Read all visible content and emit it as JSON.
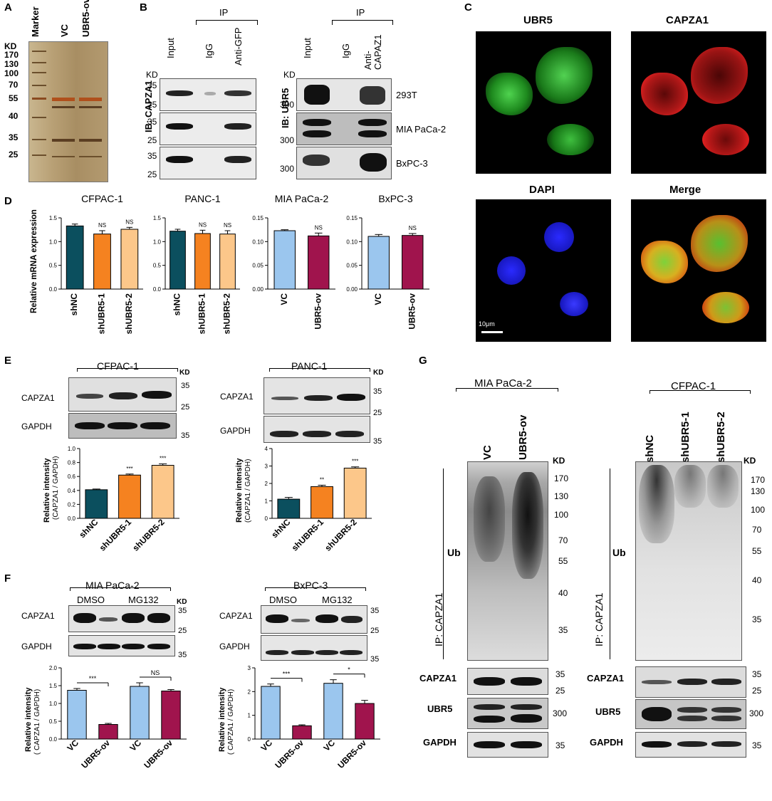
{
  "panels": {
    "A": "A",
    "B": "B",
    "C": "C",
    "D": "D",
    "E": "E",
    "F": "F",
    "G": "G"
  },
  "kd": "KD",
  "A": {
    "lanes": [
      "Marker",
      "VC",
      "UBR5-ov"
    ],
    "markers": [
      "170",
      "130",
      "100",
      "70",
      "55",
      "40",
      "35",
      "25"
    ]
  },
  "B": {
    "ip": "IP",
    "left": {
      "lanes": [
        "Input",
        "IgG",
        "Anti-GFP"
      ],
      "ib": "IB: CAPZA1",
      "markers": [
        "35",
        "25",
        "35",
        "25",
        "35",
        "25"
      ]
    },
    "right": {
      "lanes": [
        "Input",
        "IgG",
        "Anti-\nCAPAZ1"
      ],
      "ib": "IB: UBR5",
      "markers": [
        "300",
        "300",
        "300"
      ],
      "cells": [
        "293T",
        "MIA PaCa-2",
        "BxPC-3"
      ]
    }
  },
  "C": {
    "titles": [
      "UBR5",
      "CAPZA1",
      "DAPI",
      "Merge"
    ],
    "scale": "10μm"
  },
  "D": {
    "ylabel": "Relative mRNA expression",
    "ns": "NS"
  },
  "E": {
    "groups": [
      "CFPAC-1",
      "PANC-1"
    ],
    "rows": [
      "CAPZA1",
      "GAPDH"
    ],
    "markers": [
      "35",
      "25",
      "35"
    ],
    "ylabel1": "Relative intensity",
    "ylabel2": "(CAPZA1 / GAPDH)"
  },
  "F": {
    "groups": [
      "MIA PaCa-2",
      "BxPC-3"
    ],
    "treat": [
      "DMSO",
      "MG132"
    ],
    "rows": [
      "CAPZA1",
      "GAPDH"
    ],
    "markers": [
      "35",
      "25",
      "35"
    ],
    "ylabel1": "Relative intensity",
    "ylabel2": "( CAPZA1 / GAPDH)"
  },
  "G": {
    "left": {
      "group": "MIA PaCa-2",
      "lanes": [
        "VC",
        "UBR5-ov"
      ]
    },
    "right": {
      "group": "CFPAC-1",
      "lanes": [
        "shNC",
        "shUBR5-1",
        "shUBR5-2"
      ]
    },
    "ip": "IP: CAPZA1",
    "ub": "Ub",
    "markers": [
      "170",
      "130",
      "100",
      "70",
      "55",
      "40",
      "35"
    ],
    "rows": [
      "CAPZA1",
      "UBR5",
      "GAPDH"
    ],
    "rowMarkers": [
      "35",
      "25",
      "300",
      "35"
    ]
  },
  "chart_data": [
    {
      "type": "bar",
      "title": "CFPAC-1",
      "categories": [
        "shNC",
        "shUBR5-1",
        "shUBR5-2"
      ],
      "values": [
        1.33,
        1.16,
        1.26
      ],
      "errors": [
        0.04,
        0.07,
        0.04
      ],
      "ylim": [
        0,
        1.5
      ],
      "yticks": [
        0,
        0.5,
        1.0,
        1.5
      ],
      "ylabel": "Relative mRNA expression",
      "sig": [
        "",
        "NS",
        "NS"
      ],
      "colors": [
        "#0b4f5e",
        "#f58220",
        "#fcc78a"
      ]
    },
    {
      "type": "bar",
      "title": "PANC-1",
      "categories": [
        "shNC",
        "shUBR5-1",
        "shUBR5-2"
      ],
      "values": [
        1.22,
        1.17,
        1.16
      ],
      "errors": [
        0.04,
        0.07,
        0.07
      ],
      "ylim": [
        0,
        1.5
      ],
      "yticks": [
        0,
        0.5,
        1.0,
        1.5
      ],
      "sig": [
        "",
        "NS",
        "NS"
      ],
      "colors": [
        "#0b4f5e",
        "#f58220",
        "#fcc78a"
      ]
    },
    {
      "type": "bar",
      "title": "MIA PaCa-2",
      "categories": [
        "VC",
        "UBR5-ov"
      ],
      "values": [
        0.123,
        0.112
      ],
      "errors": [
        0.002,
        0.006
      ],
      "ylim": [
        0,
        0.15
      ],
      "yticks": [
        0,
        0.05,
        0.1,
        0.15
      ],
      "sig": [
        "",
        "NS"
      ],
      "colors": [
        "#9bc6ee",
        "#a0144d"
      ]
    },
    {
      "type": "bar",
      "title": "BxPC-3",
      "categories": [
        "VC",
        "UBR5-ov"
      ],
      "values": [
        0.111,
        0.113
      ],
      "errors": [
        0.004,
        0.004
      ],
      "ylim": [
        0,
        0.15
      ],
      "yticks": [
        0,
        0.05,
        0.1,
        0.15
      ],
      "sig": [
        "",
        "NS"
      ],
      "colors": [
        "#9bc6ee",
        "#a0144d"
      ]
    },
    {
      "type": "bar",
      "categories": [
        "shNC",
        "shUBR5-1",
        "shUBR5-2"
      ],
      "values": [
        0.41,
        0.62,
        0.76
      ],
      "errors": [
        0.01,
        0.015,
        0.02
      ],
      "ylim": [
        0,
        1.0
      ],
      "yticks": [
        0,
        0.2,
        0.4,
        0.6,
        0.8,
        1.0
      ],
      "ylabel": "Relative intensity (CAPZA1 / GAPDH)",
      "sig": [
        "",
        "***",
        "***"
      ],
      "colors": [
        "#0b4f5e",
        "#f58220",
        "#fcc78a"
      ]
    },
    {
      "type": "bar",
      "categories": [
        "shNC",
        "shUBR5-1",
        "shUBR5-2"
      ],
      "values": [
        1.1,
        1.82,
        2.88
      ],
      "errors": [
        0.1,
        0.08,
        0.07
      ],
      "ylim": [
        0,
        4.0
      ],
      "yticks": [
        0,
        1.0,
        2.0,
        3.0,
        4.0
      ],
      "ylabel": "Relative intensity (CAPZA1 / GAPDH)",
      "sig": [
        "",
        "**",
        "***"
      ],
      "colors": [
        "#0b4f5e",
        "#f58220",
        "#fcc78a"
      ]
    },
    {
      "type": "bar",
      "categories": [
        "VC",
        "UBR5-ov",
        "VC",
        "UBR5-ov"
      ],
      "values": [
        1.37,
        0.41,
        1.48,
        1.35
      ],
      "errors": [
        0.05,
        0.03,
        0.1,
        0.04
      ],
      "ylim": [
        0,
        2.0
      ],
      "yticks": [
        0,
        0.5,
        1.0,
        1.5,
        2.0
      ],
      "ylabel": "Relative intensity (CAPZA1 / GAPDH)",
      "comparisons": [
        {
          "pair": [
            0,
            1
          ],
          "label": "***"
        },
        {
          "pair": [
            2,
            3
          ],
          "label": "NS"
        }
      ],
      "colors": [
        "#9bc6ee",
        "#a0144d",
        "#9bc6ee",
        "#a0144d"
      ]
    },
    {
      "type": "bar",
      "categories": [
        "VC",
        "UBR5-ov",
        "VC",
        "UBR5-ov"
      ],
      "values": [
        2.22,
        0.56,
        2.35,
        1.5
      ],
      "errors": [
        0.1,
        0.04,
        0.15,
        0.13
      ],
      "ylim": [
        0,
        3.0
      ],
      "yticks": [
        0,
        1,
        2,
        3
      ],
      "ylabel": "Relative intensity (CAPZA1 / GAPDH)",
      "comparisons": [
        {
          "pair": [
            0,
            1
          ],
          "label": "***"
        },
        {
          "pair": [
            2,
            3
          ],
          "label": "*"
        }
      ],
      "colors": [
        "#9bc6ee",
        "#a0144d",
        "#9bc6ee",
        "#a0144d"
      ]
    }
  ]
}
